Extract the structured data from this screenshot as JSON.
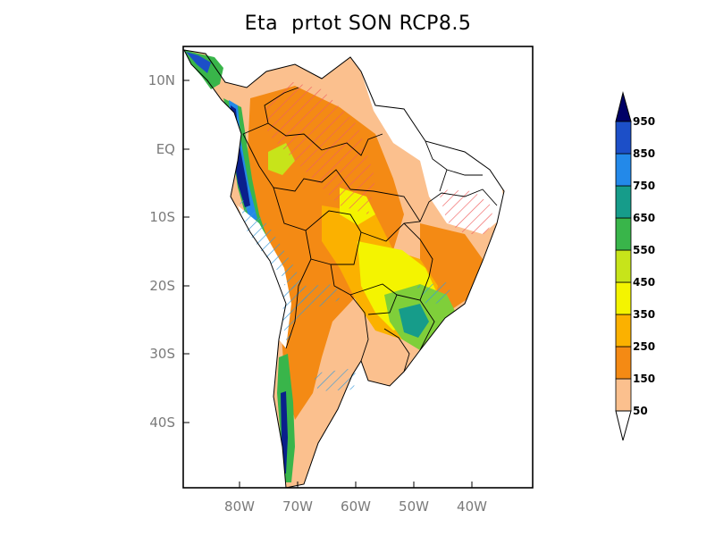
{
  "title": "Eta  prtot SON RCP8.5",
  "map": {
    "lat_ticks": [
      "10N",
      "EQ",
      "10S",
      "20S",
      "30S",
      "40S"
    ],
    "lon_ticks": [
      "80W",
      "70W",
      "60W",
      "50W",
      "40W"
    ]
  },
  "colorbar": {
    "labels": [
      "50",
      "150",
      "250",
      "350",
      "450",
      "550",
      "650",
      "750",
      "850",
      "950"
    ],
    "colors": [
      "#fbc08e",
      "#f48a14",
      "#fbb100",
      "#f4f400",
      "#f7f700",
      "#c7e41a",
      "#7fcf3a",
      "#23b02b",
      "#169c8a",
      "#2389e9",
      "#1c4fc8",
      "#0a1f8c",
      "#000066"
    ]
  },
  "colors": {
    "light_orange": "#fbc08e",
    "orange": "#f48a14",
    "amber": "#fbb100",
    "yellow": "#f4f400",
    "lime": "#c7e41a",
    "green": "#39b54a",
    "teal": "#169c8a",
    "blue": "#2389e9",
    "navy": "#0a1f8c",
    "hatch_red": "#f06060",
    "hatch_blue": "#3a9ad9"
  }
}
